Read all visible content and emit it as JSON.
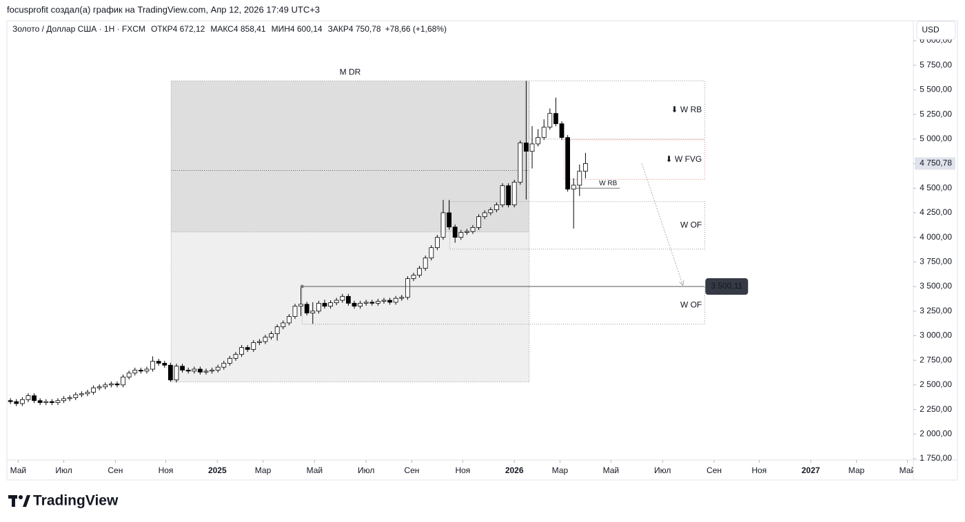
{
  "header": {
    "author_line": "focusprofit создал(а) график на TradingView.com, Апр 12, 2026 17:49 UTC+3"
  },
  "chart_data": {
    "type": "candlestick",
    "title": "Золото / Доллар США · 1Н · FXCM",
    "ohlc_legend": [
      {
        "label": "ОТКР",
        "text": "4 672,12"
      },
      {
        "label": "МАКС",
        "text": "4 858,41"
      },
      {
        "label": "МИН",
        "text": "4 600,14"
      },
      {
        "label": "ЗАКР",
        "text": "4 750,78"
      }
    ],
    "change": "+78,66 (+1,68%)",
    "currency": "USD",
    "up_color": "#ffffff",
    "down_color": "#000000",
    "border_color": "#000000",
    "x": [
      0,
      1,
      2,
      3,
      4,
      5,
      6,
      7,
      8,
      9,
      10,
      11,
      12,
      13,
      14,
      15,
      16,
      17,
      18,
      19,
      20,
      21,
      22,
      23,
      24,
      25,
      26,
      27,
      28,
      29,
      30,
      31,
      32,
      33,
      34,
      35,
      36,
      37,
      38,
      39,
      40,
      41,
      42,
      43,
      44,
      45,
      46,
      47,
      48,
      49,
      50,
      51,
      52,
      53,
      54,
      55,
      56,
      57,
      58,
      59,
      60,
      61,
      62,
      63,
      64,
      65,
      66,
      67,
      68,
      69,
      70,
      71,
      72,
      73,
      74,
      75,
      76,
      77,
      78,
      79,
      80,
      81,
      82,
      83,
      84,
      85,
      86,
      87,
      88,
      89,
      90,
      91,
      92,
      93,
      94,
      95,
      96,
      97
    ],
    "open": [
      2340,
      2330,
      2310,
      2350,
      2390,
      2340,
      2320,
      2330,
      2320,
      2340,
      2360,
      2370,
      2400,
      2410,
      2425,
      2470,
      2480,
      2500,
      2510,
      2500,
      2580,
      2620,
      2650,
      2640,
      2660,
      2740,
      2720,
      2700,
      2550,
      2690,
      2650,
      2640,
      2660,
      2630,
      2640,
      2650,
      2680,
      2720,
      2770,
      2810,
      2880,
      2860,
      2930,
      2940,
      2985,
      3020,
      3090,
      3130,
      3195,
      3300,
      3320,
      3230,
      3250,
      3330,
      3300,
      3335,
      3360,
      3400,
      3330,
      3300,
      3330,
      3340,
      3330,
      3350,
      3360,
      3340,
      3380,
      3390,
      3580,
      3615,
      3685,
      3790,
      3895,
      4000,
      4250,
      4105,
      4000,
      4050,
      4060,
      4100,
      4210,
      4250,
      4280,
      4330,
      4525,
      4330,
      4560,
      4960,
      4875,
      4950,
      5015,
      5120,
      5260,
      5155,
      5015,
      4490,
      4530,
      4672.12
    ],
    "high": [
      2365,
      2355,
      2375,
      2415,
      2415,
      2365,
      2355,
      2355,
      2365,
      2385,
      2395,
      2425,
      2435,
      2450,
      2495,
      2505,
      2525,
      2535,
      2535,
      2605,
      2645,
      2675,
      2675,
      2685,
      2790,
      2765,
      2745,
      2725,
      2715,
      2715,
      2675,
      2685,
      2685,
      2665,
      2675,
      2705,
      2745,
      2795,
      2835,
      2905,
      2905,
      2955,
      2965,
      3010,
      3045,
      3115,
      3155,
      3220,
      3325,
      3500,
      3345,
      3340,
      3355,
      3365,
      3360,
      3385,
      3425,
      3425,
      3355,
      3355,
      3365,
      3365,
      3375,
      3385,
      3385,
      3405,
      3415,
      3605,
      3640,
      3710,
      3815,
      3920,
      4025,
      4380,
      4380,
      4130,
      4075,
      4085,
      4125,
      4235,
      4275,
      4305,
      4355,
      4550,
      4550,
      4585,
      4985,
      5590,
      5130,
      5100,
      5200,
      5310,
      5420,
      5180,
      5040,
      4600,
      4740,
      4858.41
    ],
    "low": [
      2305,
      2285,
      2285,
      2325,
      2315,
      2295,
      2295,
      2295,
      2295,
      2315,
      2335,
      2345,
      2375,
      2385,
      2400,
      2445,
      2455,
      2475,
      2475,
      2475,
      2555,
      2595,
      2615,
      2615,
      2635,
      2695,
      2675,
      2530,
      2525,
      2625,
      2615,
      2615,
      2605,
      2605,
      2615,
      2625,
      2655,
      2695,
      2745,
      2785,
      2835,
      2835,
      2905,
      2915,
      2960,
      2950,
      3065,
      3105,
      3170,
      3200,
      3205,
      3120,
      3225,
      3275,
      3275,
      3310,
      3335,
      3305,
      3275,
      3275,
      3305,
      3305,
      3305,
      3325,
      3315,
      3315,
      3355,
      3365,
      3555,
      3590,
      3660,
      3765,
      3870,
      3975,
      4080,
      3945,
      3975,
      4025,
      4035,
      4075,
      4185,
      4225,
      4255,
      4305,
      4305,
      4305,
      4535,
      4385,
      4700,
      4925,
      4990,
      5095,
      5130,
      4990,
      4465,
      4090,
      4420,
      4600.14
    ],
    "close": [
      2330,
      2310,
      2350,
      2390,
      2340,
      2320,
      2330,
      2320,
      2340,
      2360,
      2370,
      2400,
      2410,
      2425,
      2470,
      2480,
      2500,
      2510,
      2500,
      2580,
      2620,
      2650,
      2640,
      2660,
      2740,
      2720,
      2700,
      2550,
      2690,
      2650,
      2640,
      2660,
      2630,
      2640,
      2650,
      2680,
      2720,
      2770,
      2810,
      2880,
      2860,
      2930,
      2940,
      2985,
      3020,
      3090,
      3130,
      3195,
      3300,
      3320,
      3230,
      3250,
      3330,
      3300,
      3335,
      3360,
      3400,
      3330,
      3300,
      3330,
      3340,
      3330,
      3350,
      3360,
      3340,
      3380,
      3390,
      3580,
      3615,
      3685,
      3790,
      3895,
      4000,
      4250,
      4105,
      4000,
      4050,
      4060,
      4100,
      4210,
      4250,
      4280,
      4330,
      4525,
      4330,
      4560,
      4960,
      4875,
      4950,
      5015,
      5120,
      5260,
      5155,
      5015,
      4490,
      4530,
      4672.12,
      4750.78
    ],
    "xlim": [
      -0.6,
      152.3
    ],
    "xticks": [
      {
        "value": 1.3,
        "label": "Май"
      },
      {
        "value": 9.0,
        "label": "Июл"
      },
      {
        "value": 17.7,
        "label": "Сен"
      },
      {
        "value": 26.2,
        "label": "Ноя"
      },
      {
        "value": 34.9,
        "label": "2025"
      },
      {
        "value": 42.6,
        "label": "Мар"
      },
      {
        "value": 51.3,
        "label": "Май"
      },
      {
        "value": 60.0,
        "label": "Июл"
      },
      {
        "value": 67.7,
        "label": "Сен"
      },
      {
        "value": 76.3,
        "label": "Ноя"
      },
      {
        "value": 85.0,
        "label": "2026"
      },
      {
        "value": 92.7,
        "label": "Мар"
      },
      {
        "value": 101.3,
        "label": "Май"
      },
      {
        "value": 110.0,
        "label": "Июл"
      },
      {
        "value": 118.7,
        "label": "Сен"
      },
      {
        "value": 126.3,
        "label": "Ноя"
      },
      {
        "value": 135.0,
        "label": "2027"
      },
      {
        "value": 142.7,
        "label": "Мар"
      },
      {
        "value": 151.3,
        "label": "Май"
      }
    ],
    "ylim": [
      1750,
      6000
    ],
    "yticks": [
      {
        "value": 1750,
        "label": "1 750,00"
      },
      {
        "value": 2000,
        "label": "2 000,00"
      },
      {
        "value": 2250,
        "label": "2 250,00"
      },
      {
        "value": 2500,
        "label": "2 500,00"
      },
      {
        "value": 2750,
        "label": "2 750,00"
      },
      {
        "value": 3000,
        "label": "3 000,00"
      },
      {
        "value": 3250,
        "label": "3 250,00"
      },
      {
        "value": 3500,
        "label": "3 500,00"
      },
      {
        "value": 3750,
        "label": "3 750,00"
      },
      {
        "value": 4000,
        "label": "4 000,00"
      },
      {
        "value": 4250,
        "label": "4 250,00"
      },
      {
        "value": 4500,
        "label": "4 500,00"
      },
      {
        "value": 4750,
        "label": "4 750,00"
      },
      {
        "value": 5000,
        "label": "5 000,00"
      },
      {
        "value": 5250,
        "label": "5 250,00"
      },
      {
        "value": 5500,
        "label": "5 500,00"
      },
      {
        "value": 5750,
        "label": "5 750,00"
      },
      {
        "value": 6000,
        "label": "6 000,00"
      }
    ],
    "last_price": {
      "value": 4750.78,
      "label": "4 750,78"
    },
    "zones": [
      {
        "kind": "box",
        "label": "M DR",
        "label_pos": "top",
        "x": [
          27.1,
          87.5
        ],
        "y": [
          2530,
          5590
        ],
        "split": 4055,
        "line": 4680,
        "fill": "#dedede",
        "fill_lower": "#efefef",
        "stroke": "#999999",
        "color": "#888888"
      },
      {
        "kind": "box",
        "label": "⬇ W RB",
        "label_pos": "right",
        "x": [
          87.5,
          117.1
        ],
        "y": [
          5000,
          5590
        ],
        "stroke": "#999999",
        "color": "#555555"
      },
      {
        "kind": "box",
        "label": "⬇ W FVG",
        "label_pos": "right",
        "x": [
          93.4,
          117.1
        ],
        "y": [
          4590,
          4993
        ],
        "stroke": "#f08080",
        "color": "#e53935"
      },
      {
        "kind": "line",
        "label": "W RB",
        "x": [
          95.0,
          102.8
        ],
        "y": [
          4500
        ],
        "stroke": "#777777",
        "color": "#555555"
      },
      {
        "kind": "box",
        "label": "W OF",
        "label_pos": "right",
        "x": [
          74.1,
          117.1
        ],
        "y": [
          3880,
          4363
        ],
        "stroke": "#999999",
        "color": "#555555"
      },
      {
        "kind": "box",
        "label": "W OF",
        "label_pos": "right",
        "x": [
          49.2,
          117.1
        ],
        "y": [
          3117,
          3500
        ],
        "stroke": "#999999",
        "color": "#555555"
      }
    ],
    "level": {
      "x": [
        49.2,
        117.1
      ],
      "value": 3500.11,
      "label": "3 500,11"
    },
    "arrow": {
      "x": [
        106.5,
        113.4
      ],
      "y": [
        4750,
        3520
      ],
      "color": "#aaaaaa"
    }
  },
  "footer": {
    "brand": "TradingView"
  }
}
